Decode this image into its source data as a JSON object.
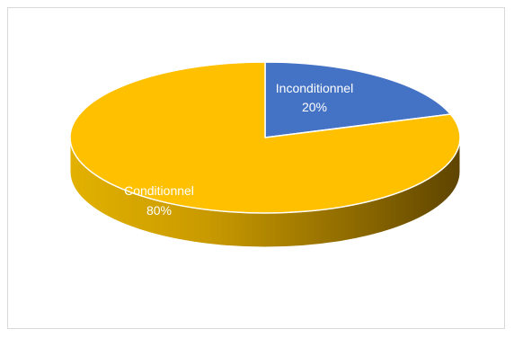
{
  "chart_data": {
    "type": "pie",
    "style": "3d",
    "title": "",
    "categories": [
      "Inconditionnel",
      "Conditionnel"
    ],
    "values": [
      20,
      80
    ],
    "data_labels": [
      {
        "name": "Inconditionnel",
        "value": "20%"
      },
      {
        "name": "Conditionnel",
        "value": "80%"
      }
    ],
    "colors": [
      "#4472C4",
      "#FFC000"
    ],
    "legend": "none"
  }
}
